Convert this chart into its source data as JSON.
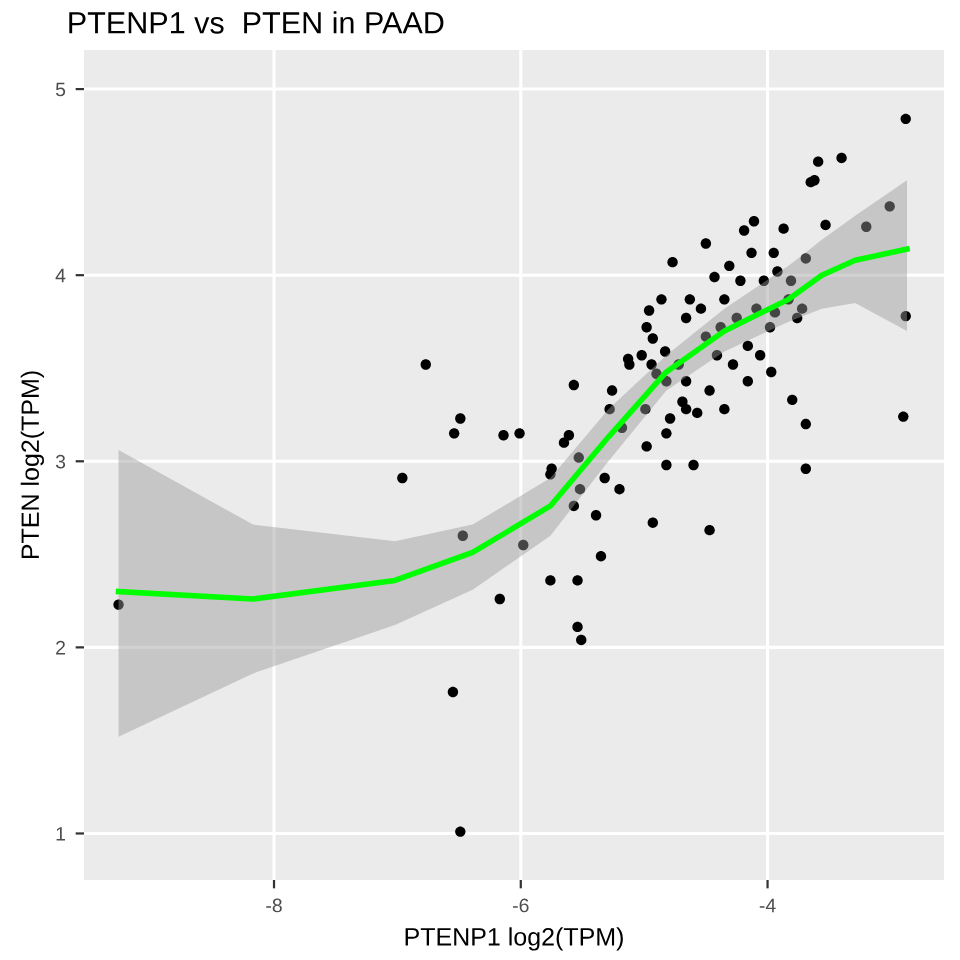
{
  "chart_data": {
    "type": "scatter",
    "title": "PTENP1 vs  PTEN in PAAD",
    "xlabel": "PTENP1 log2(TPM)",
    "ylabel": "PTEN log2(TPM)",
    "xlim": [
      -9.54,
      -2.57
    ],
    "ylim": [
      0.75,
      5.21
    ],
    "xticks": [
      -8,
      -6,
      -4
    ],
    "yticks": [
      1,
      2,
      3,
      4,
      5
    ],
    "grid": true,
    "legend": false,
    "series": [
      {
        "marker": "circle",
        "color": "#000000",
        "x": [
          -9.26,
          -6.77,
          -6.96,
          -6.49,
          -6.54,
          -6.14,
          -6.01,
          -6.47,
          -5.98,
          -6.17,
          -6.55,
          -6.49,
          -5.76,
          -5.75,
          -5.65,
          -5.61,
          -5.57,
          -5.53,
          -5.52,
          -5.57,
          -5.39,
          -5.54,
          -5.76,
          -5.54,
          -5.51,
          -5.35,
          -5.32,
          -5.26,
          -5.28,
          -5.2,
          -5.18,
          -5.12,
          -5.02,
          -4.99,
          -4.98,
          -4.94,
          -4.93,
          -4.98,
          -4.96,
          -4.93,
          -4.9,
          -4.83,
          -4.82,
          -4.82,
          -4.79,
          -4.77,
          -4.72,
          -4.66,
          -4.66,
          -4.66,
          -4.63,
          -4.6,
          -4.54,
          -4.5,
          -4.5,
          -4.47,
          -4.47,
          -4.43,
          -4.41,
          -4.38,
          -4.35,
          -4.31,
          -4.28,
          -4.25,
          -4.22,
          -4.19,
          -4.16,
          -4.16,
          -4.13,
          -4.11,
          -4.09,
          -4.06,
          -4.03,
          -3.98,
          -3.97,
          -3.95,
          -3.92,
          -3.87,
          -3.83,
          -3.8,
          -3.76,
          -3.72,
          -3.69,
          -3.69,
          -3.69,
          -3.65,
          -3.62,
          -3.59,
          -3.53,
          -3.4,
          -3.2,
          -3.01,
          -2.88,
          -2.88,
          -2.9,
          -4.57,
          -4.69,
          -3.94,
          -3.81,
          -4.35,
          -4.82,
          -5.13,
          -4.86
        ],
        "values": [
          2.23,
          3.52,
          2.91,
          3.23,
          3.15,
          3.14,
          3.15,
          2.6,
          2.55,
          2.26,
          1.76,
          1.01,
          2.93,
          2.96,
          3.1,
          3.14,
          3.41,
          3.02,
          2.85,
          2.76,
          2.71,
          2.36,
          2.36,
          2.11,
          2.04,
          2.49,
          2.91,
          3.38,
          3.28,
          2.85,
          3.18,
          3.52,
          3.57,
          3.28,
          3.08,
          3.52,
          2.67,
          3.72,
          3.81,
          3.66,
          3.47,
          3.59,
          3.15,
          2.98,
          3.23,
          4.07,
          3.52,
          3.77,
          3.43,
          3.28,
          3.87,
          2.98,
          3.82,
          4.17,
          3.67,
          3.38,
          2.63,
          3.99,
          3.57,
          3.72,
          3.87,
          4.05,
          3.52,
          3.77,
          3.97,
          4.24,
          3.43,
          3.62,
          4.12,
          4.29,
          3.82,
          3.57,
          3.97,
          3.72,
          3.48,
          4.12,
          4.02,
          4.25,
          3.87,
          3.33,
          3.77,
          3.82,
          4.09,
          3.2,
          2.96,
          4.5,
          4.51,
          4.61,
          4.27,
          4.63,
          4.26,
          4.37,
          4.84,
          3.78,
          3.24,
          3.26,
          3.32,
          3.8,
          3.97,
          3.28,
          3.43,
          3.55,
          3.87
        ]
      },
      {
        "type": "line",
        "color": "#00ff00",
        "x": [
          -9.26,
          -8.17,
          -7.02,
          -6.39,
          -5.76,
          -5.29,
          -4.82,
          -4.35,
          -3.83,
          -3.56,
          -3.29,
          -2.87
        ],
        "values": [
          2.3,
          2.26,
          2.36,
          2.51,
          2.76,
          3.13,
          3.48,
          3.7,
          3.87,
          4.0,
          4.08,
          4.14
        ],
        "lower": [
          1.52,
          1.86,
          2.12,
          2.31,
          2.6,
          3.0,
          3.38,
          3.59,
          3.75,
          3.82,
          3.85,
          3.7
        ],
        "upper": [
          3.06,
          2.66,
          2.57,
          2.66,
          2.91,
          3.28,
          3.57,
          3.82,
          4.05,
          4.19,
          4.32,
          4.51
        ]
      }
    ]
  }
}
